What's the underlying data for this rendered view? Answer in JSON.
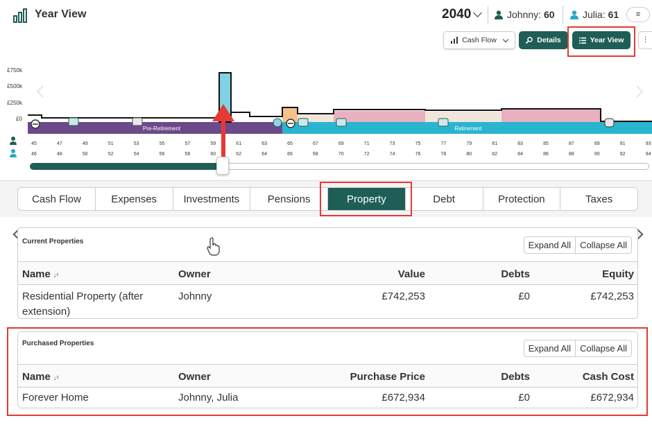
{
  "header": {
    "title": "Year View",
    "year": "2040",
    "people": [
      {
        "label": "Johnny:",
        "age": "60",
        "color": "#1f5e57"
      },
      {
        "label": "Julia:",
        "age": "61",
        "color": "#29a9c6"
      }
    ],
    "menu_icon": "≡"
  },
  "toolbar": {
    "cashflow_label": "Cash Flow",
    "details_label": "Details",
    "yearview_label": "Year View"
  },
  "chart": {
    "y_ticks": [
      "£750k",
      "£500k",
      "£250k",
      "£0"
    ],
    "phases": [
      "Pre-Retirement",
      "Retirement"
    ],
    "ages_johnny": [
      "45",
      "47",
      "49",
      "51",
      "53",
      "55",
      "57",
      "59",
      "61",
      "63",
      "65",
      "67",
      "69",
      "71",
      "73",
      "75",
      "77",
      "79",
      "81",
      "83",
      "85",
      "87",
      "89",
      "91",
      "93"
    ],
    "ages_julia": [
      "46",
      "48",
      "50",
      "52",
      "54",
      "56",
      "58",
      "60",
      "62",
      "64",
      "66",
      "68",
      "70",
      "72",
      "74",
      "76",
      "78",
      "80",
      "82",
      "84",
      "86",
      "88",
      "90",
      "92",
      "94"
    ],
    "colors": {
      "pre": "#6b4a8a",
      "ret": "#29b5cf",
      "peak": "#7fd3e3",
      "pink": "#e9b1c0",
      "cream": "#f0e6dc",
      "orange": "#f5c28a"
    }
  },
  "chart_data": {
    "type": "bar",
    "ylim": [
      0,
      900000
    ],
    "x_ticks": [
      45,
      47,
      49,
      51,
      53,
      55,
      57,
      59,
      61,
      63,
      65,
      67,
      69,
      71,
      73,
      75,
      77,
      79,
      81,
      83,
      85,
      87,
      89,
      91,
      93
    ],
    "peak": {
      "age": 60,
      "value": 742253
    }
  },
  "slider": {
    "progress": 0.31
  },
  "tabs": [
    {
      "label": "Cash Flow",
      "active": false
    },
    {
      "label": "Expenses",
      "active": false
    },
    {
      "label": "Investments",
      "active": false
    },
    {
      "label": "Pensions",
      "active": false
    },
    {
      "label": "Property",
      "active": true
    },
    {
      "label": "Debt",
      "active": false
    },
    {
      "label": "Protection",
      "active": false
    },
    {
      "label": "Taxes",
      "active": false
    }
  ],
  "current_properties": {
    "title": "Current Properties",
    "expand_label": "Expand All",
    "collapse_label": "Collapse All",
    "columns": [
      "Name",
      "Owner",
      "Value",
      "Debts",
      "Equity"
    ],
    "rows": [
      {
        "name_line1": "Residential Property (after",
        "name_line2": "extension)",
        "owner": "Johnny",
        "value": "£742,253",
        "debts": "£0",
        "equity": "£742,253"
      }
    ]
  },
  "purchased_properties": {
    "title": "Purchased Properties",
    "expand_label": "Expand All",
    "collapse_label": "Collapse All",
    "columns": [
      "Name",
      "Owner",
      "Purchase Price",
      "Debts",
      "Cash Cost"
    ],
    "rows": [
      {
        "name": "Forever Home",
        "owner": "Johnny, Julia",
        "price": "£672,934",
        "debts": "£0",
        "cash_cost": "£672,934"
      }
    ]
  }
}
